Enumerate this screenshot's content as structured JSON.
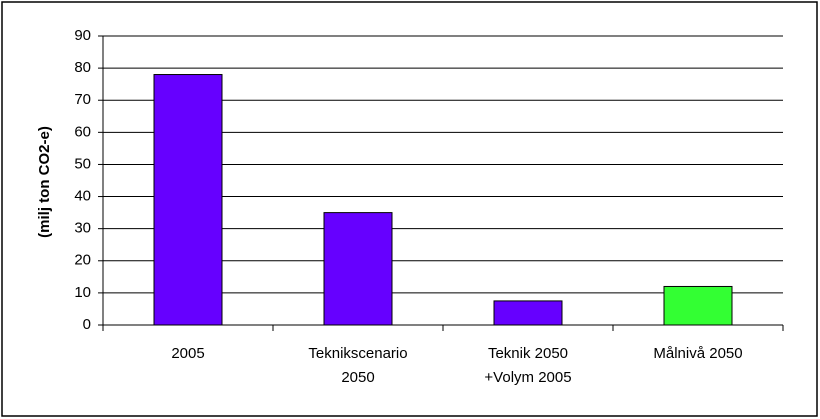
{
  "chart_data": {
    "type": "bar",
    "y_label": "(milj ton CO2-e)",
    "categories": [
      "2005",
      "Teknikscenario\n2050",
      "Teknik 2050\n+Volym 2005",
      "Målnivå 2050"
    ],
    "values": [
      78,
      35,
      7.5,
      12
    ],
    "colors": [
      "#6600ff",
      "#6600ff",
      "#6600ff",
      "#33ff33"
    ],
    "ylim": [
      0,
      90
    ],
    "yticks": [
      0,
      10,
      20,
      30,
      40,
      50,
      60,
      70,
      80,
      90
    ],
    "grid": true
  }
}
